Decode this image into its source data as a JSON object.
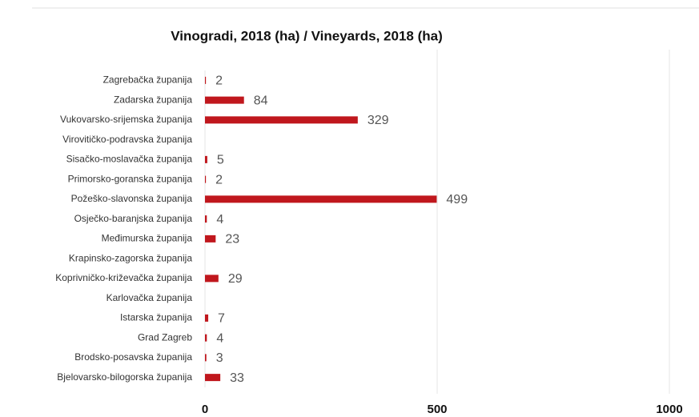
{
  "chart_data": {
    "type": "bar",
    "orientation": "horizontal",
    "title": "Vinogradi, 2018 (ha) / Vineyards, 2018 (ha)",
    "categories": [
      "Zagrebačka županija",
      "Zadarska županija",
      "Vukovarsko-srijemska županija",
      "Virovitičko-podravska županija",
      "Sisačko-moslavačka županija",
      "Primorsko-goranska županija",
      "Požeško-slavonska županija",
      "Osječko-baranjska županija",
      "Međimurska županija",
      "Krapinsko-zagorska županija",
      "Koprivničko-križevačka županija",
      "Karlovačka županija",
      "Istarska županija",
      "Grad Zagreb",
      "Brodsko-posavska županija",
      "Bjelovarsko-bilogorska županija"
    ],
    "values": [
      2,
      84,
      329,
      null,
      5,
      2,
      499,
      4,
      23,
      null,
      29,
      null,
      7,
      4,
      3,
      33
    ],
    "color": "#c0171d",
    "xlim": [
      0,
      1000
    ],
    "xticks": [
      0,
      500,
      1000
    ],
    "grid": true
  }
}
